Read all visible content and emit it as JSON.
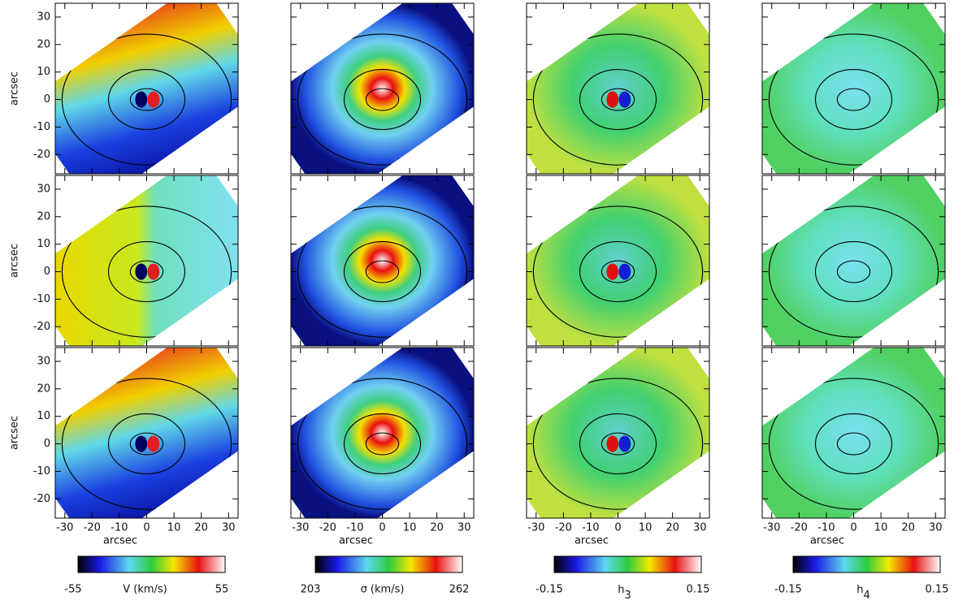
{
  "xlabel": "arcsec",
  "ylabel": "arcsec",
  "xlim": [
    -33.5,
    33.5
  ],
  "ylim": [
    -27,
    35
  ],
  "xticks": [
    -30,
    -20,
    -10,
    0,
    10,
    20,
    30
  ],
  "yticks": [
    -20,
    -10,
    0,
    10,
    20,
    30
  ],
  "columns": [
    {
      "label": "V (km/s)",
      "min": -55,
      "max": 55
    },
    {
      "label": "σ (km/s)",
      "min": 203,
      "max": 262
    },
    {
      "label": {
        "symbol": "h",
        "subscript": "3"
      },
      "min": -0.15,
      "max": 0.15
    },
    {
      "label": {
        "symbol": "h",
        "subscript": "4"
      },
      "min": -0.15,
      "max": 0.15
    }
  ]
}
